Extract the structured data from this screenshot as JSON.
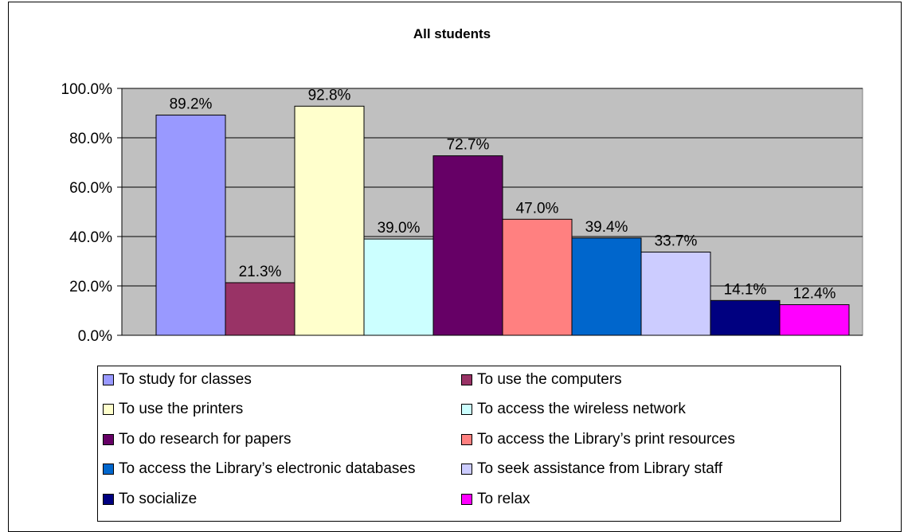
{
  "chart_data": {
    "type": "bar",
    "title": "All students",
    "xlabel": "",
    "ylabel": "",
    "ylim": [
      0,
      100
    ],
    "yticks": [
      "0.0%",
      "20.0%",
      "40.0%",
      "60.0%",
      "80.0%",
      "100.0%"
    ],
    "grid": true,
    "legend_position": "bottom",
    "categories": [
      "To study for classes",
      "To use the computers",
      "To use the printers",
      "To access the wireless network",
      "To do research for papers",
      "To access the Library’s print resources",
      "To access the Library’s electronic databases",
      "To seek assistance from Library staff",
      "To socialize",
      "To relax"
    ],
    "values": [
      89.2,
      21.3,
      92.8,
      39.0,
      72.7,
      47.0,
      39.4,
      33.7,
      14.1,
      12.4
    ],
    "value_labels": [
      "89.2%",
      "21.3%",
      "92.8%",
      "39.0%",
      "72.7%",
      "47.0%",
      "39.4%",
      "33.7%",
      "14.1%",
      "12.4%"
    ],
    "colors": [
      "#9999ff",
      "#993366",
      "#ffffcc",
      "#ccffff",
      "#660066",
      "#ff8080",
      "#0066cc",
      "#ccccff",
      "#000080",
      "#ff00ff"
    ],
    "plot_background": "#c0c0c0"
  }
}
